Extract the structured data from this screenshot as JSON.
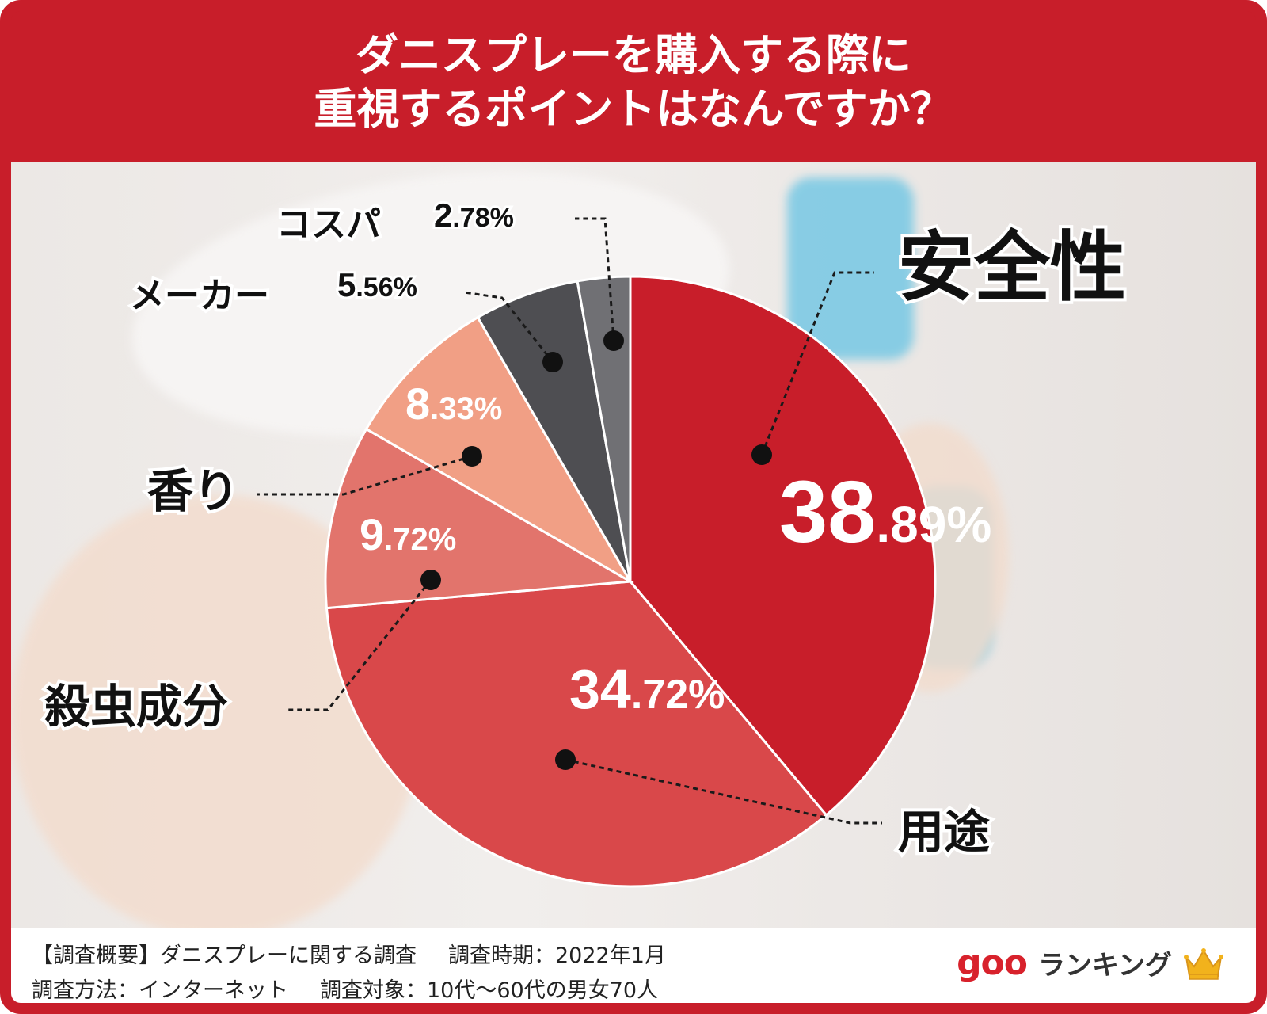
{
  "title": {
    "line1": "ダニスプレーを購入する際に",
    "line2": "重視するポイントはなんですか？"
  },
  "chart_data": {
    "type": "pie",
    "slices": [
      {
        "name": "安全性",
        "value": 38.89,
        "color": "#c81e2a",
        "big": "38",
        "small": ".89%"
      },
      {
        "name": "用途",
        "value": 34.72,
        "color": "#d9484a",
        "big": "34",
        "small": ".72%"
      },
      {
        "name": "殺虫成分",
        "value": 9.72,
        "color": "#e2746c",
        "big": "9",
        "small": ".72%"
      },
      {
        "name": "香り",
        "value": 8.33,
        "color": "#f19f85",
        "big": "8",
        "small": ".33%"
      },
      {
        "name": "メーカー",
        "value": 5.56,
        "color": "#4e4e52",
        "big": "5",
        "small": ".56%"
      },
      {
        "name": "コスパ",
        "value": 2.78,
        "color": "#707074",
        "big": "2",
        "small": ".78%"
      }
    ]
  },
  "footer": {
    "line1a": "【調査概要】ダニスプレーに関する調査",
    "line1b": "調査時期：2022年1月",
    "line2a": "調査方法：インターネット",
    "line2b": "調査対象：10代〜60代の男女70人"
  },
  "logo": {
    "goo": "goo",
    "ranking": "ランキング",
    "crown_color": "#f2b21c"
  }
}
